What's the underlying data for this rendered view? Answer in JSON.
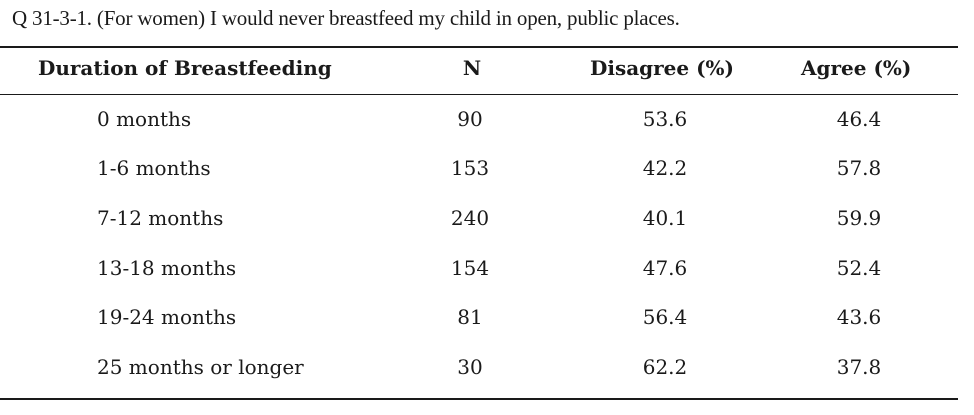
{
  "caption": "Q 31-3-1. (For women) I would never breastfeed my child in open, public places.",
  "table": {
    "headers": [
      "Duration of Breastfeeding",
      "N",
      "Disagree (%)",
      "Agree (%)"
    ],
    "rows": [
      [
        "0 months",
        "90",
        "53.6",
        "46.4"
      ],
      [
        "1-6 months",
        "153",
        "42.2",
        "57.8"
      ],
      [
        "7-12 months",
        "240",
        "40.1",
        "59.9"
      ],
      [
        "13-18 months",
        "154",
        "47.6",
        "52.4"
      ],
      [
        "19-24 months",
        "81",
        "56.4",
        "43.6"
      ],
      [
        "25 months or longer",
        "30",
        "62.2",
        "37.8"
      ]
    ]
  }
}
